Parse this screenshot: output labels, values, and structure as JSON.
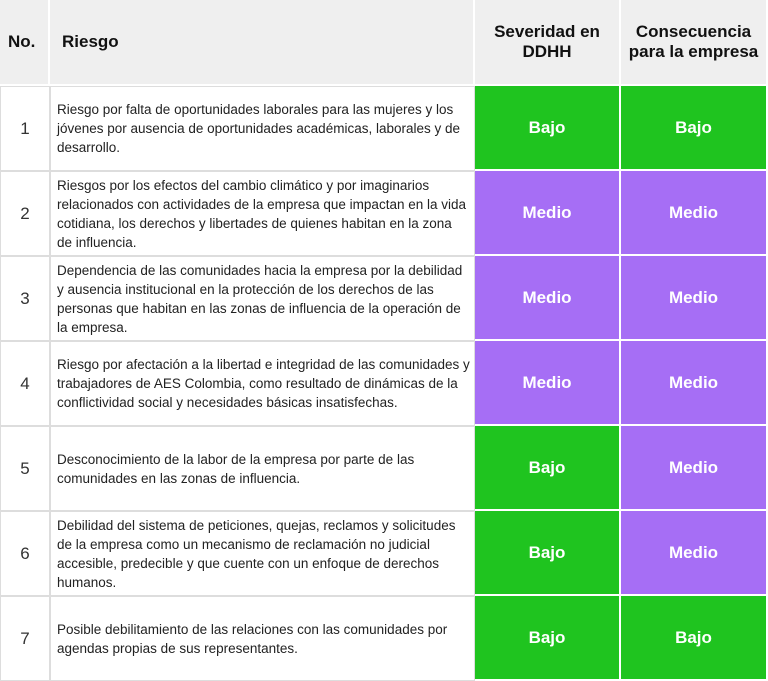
{
  "table": {
    "header": [
      "No.",
      "Riesgo",
      "Severidad en DDHH",
      "Consecuencia para la empresa"
    ],
    "rows": [
      [
        "1",
        "Riesgo por falta de oportunidades laborales para las mujeres y los jóvenes por ausencia de oportunidades académicas, laborales y de desarrollo.",
        {
          "text": "Bajo",
          "color": "#1fc41f"
        },
        {
          "text": "Bajo",
          "color": "#1fc41f"
        }
      ],
      [
        "2",
        "Riesgos por los efectos del cambio climático y por imaginarios relacionados con actividades de la empresa que impactan en la vida cotidiana, los derechos y libertades de quienes habitan en la zona de influencia.",
        {
          "text": "Medio",
          "color": "#a66ef5"
        },
        {
          "text": "Medio",
          "color": "#a66ef5"
        }
      ],
      [
        "3",
        "Dependencia de las comunidades hacia la empresa por la debilidad y ausencia institucional en la protección de los derechos de las personas que habitan en las zonas de influencia de la operación de la empresa.",
        {
          "text": "Medio",
          "color": "#a66ef5"
        },
        {
          "text": "Medio",
          "color": "#a66ef5"
        }
      ],
      [
        "4",
        "Riesgo por afectación a la libertad e integridad de las comunidades y trabajadores de AES Colombia, como resultado de dinámicas de la conflictividad social y necesidades básicas insatisfechas.",
        {
          "text": "Medio",
          "color": "#a66ef5"
        },
        {
          "text": "Medio",
          "color": "#a66ef5"
        }
      ],
      [
        "5",
        "Desconocimiento de la labor de la empresa por parte de las comunidades en las zonas de influencia.",
        {
          "text": "Bajo",
          "color": "#1fc41f"
        },
        {
          "text": "Medio",
          "color": "#a66ef5"
        }
      ],
      [
        "6",
        "Debilidad del sistema de peticiones, quejas, reclamos y solicitudes de la empresa como un mecanismo de reclamación no judicial accesible, predecible y que cuente con un enfoque de derechos humanos.",
        {
          "text": "Bajo",
          "color": "#1fc41f"
        },
        {
          "text": "Medio",
          "color": "#a66ef5"
        }
      ],
      [
        "7",
        "Posible debilitamiento de las relaciones con las comunidades por agendas propias de sus representantes.",
        {
          "text": "Bajo",
          "color": "#1fc41f"
        },
        {
          "text": "Bajo",
          "color": "#1fc41f"
        }
      ]
    ]
  }
}
